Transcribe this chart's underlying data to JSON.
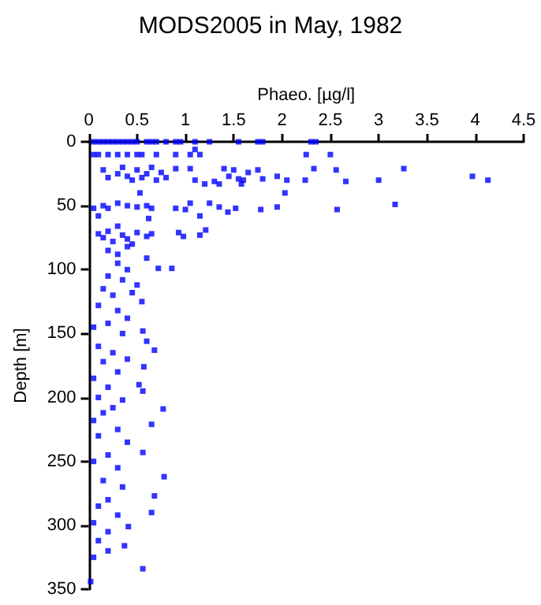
{
  "chart_data": {
    "type": "scatter",
    "title": "MODS2005 in May, 1982",
    "xlabel": "Phaeo. [µg/l]",
    "ylabel": "Depth [m]",
    "xlim": [
      0,
      4.5
    ],
    "xticks": [
      0,
      0.5,
      1,
      1.5,
      2,
      2.5,
      3,
      3.5,
      4,
      4.5
    ],
    "ylim": [
      350,
      0
    ],
    "yticks": [
      0,
      50,
      100,
      150,
      200,
      250,
      300,
      350
    ],
    "grid": false,
    "marker": "square",
    "series": [
      {
        "color": "#0000ff",
        "x": [
          0.05,
          0.1,
          0.15,
          0.2,
          0.25,
          0.3,
          0.35,
          0.4,
          0.45,
          0.5,
          0.6,
          0.65,
          0.7,
          0.8,
          0.9,
          0.95,
          1.1,
          1.25,
          1.55,
          1.75,
          1.8,
          2.3,
          2.35,
          0.05,
          0.1,
          0.2,
          0.3,
          0.4,
          0.5,
          0.55,
          0.7,
          0.9,
          1.05,
          1.15,
          2.25,
          2.5,
          1.1,
          0.15,
          0.2,
          0.3,
          0.35,
          0.4,
          0.45,
          0.5,
          0.55,
          0.6,
          0.65,
          0.7,
          0.75,
          0.8,
          0.9,
          1.05,
          1.1,
          1.2,
          1.3,
          1.35,
          1.4,
          1.5,
          1.55,
          1.6,
          1.65,
          1.75,
          1.8,
          1.95,
          2.05,
          2.24,
          2.33,
          2.56,
          2.66,
          3.0,
          3.26,
          3.97,
          4.13,
          1.58,
          1.45,
          0.53,
          2.03,
          0.05,
          0.15,
          0.2,
          0.3,
          0.4,
          0.5,
          0.6,
          0.65,
          0.9,
          1.0,
          1.05,
          1.15,
          1.25,
          1.35,
          1.44,
          1.52,
          1.78,
          1.95,
          2.57,
          3.17,
          0.1,
          0.62,
          0.1,
          0.15,
          0.2,
          0.25,
          0.3,
          0.35,
          0.4,
          0.5,
          0.6,
          0.65,
          0.93,
          0.98,
          1.15,
          1.21,
          0.45,
          0.2,
          0.3,
          0.4,
          0.6,
          0.72,
          0.86,
          0.3,
          0.4,
          0.2,
          0.35,
          0.5,
          0.15,
          0.25,
          0.45,
          0.55,
          0.1,
          0.3,
          0.4,
          0.2,
          0.56,
          0.05,
          0.35,
          0.6,
          0.68,
          0.1,
          0.25,
          0.4,
          0.15,
          0.57,
          0.3,
          0.05,
          0.52,
          0.2,
          0.56,
          0.1,
          0.35,
          0.25,
          0.77,
          0.15,
          0.65,
          0.05,
          0.3,
          0.1,
          0.4,
          0.56,
          0.2,
          0.05,
          0.3,
          0.78,
          0.15,
          0.35,
          0.68,
          0.2,
          0.1,
          0.65,
          0.3,
          0.05,
          0.41,
          0.2,
          0.1,
          0.37,
          0.2,
          0.05,
          0.56,
          0.02
        ],
        "values": [
          0,
          0,
          0,
          0,
          0,
          0,
          0,
          0,
          0,
          0,
          0,
          0,
          0,
          0,
          0,
          0,
          0,
          0,
          0,
          0,
          0,
          0,
          0,
          10,
          10,
          10,
          10,
          10,
          10,
          10,
          10,
          10,
          10,
          10,
          10,
          10,
          6,
          22,
          28,
          25,
          20,
          27,
          30,
          22,
          28,
          25,
          20,
          30,
          24,
          28,
          21,
          21,
          30,
          33,
          31,
          33,
          21,
          22,
          29,
          30,
          24,
          22,
          29,
          27,
          30,
          30,
          21,
          22,
          31,
          30,
          21,
          27,
          30,
          33,
          27,
          40,
          40,
          52,
          50,
          52,
          48,
          50,
          51,
          50,
          52,
          52,
          53,
          48,
          58,
          48,
          51,
          55,
          52,
          53,
          51,
          53,
          49,
          58,
          60,
          72,
          75,
          70,
          78,
          66,
          73,
          76,
          71,
          74,
          72,
          71,
          74,
          73,
          69,
          80,
          85,
          88,
          82,
          91,
          99,
          99,
          95,
          100,
          105,
          108,
          112,
          115,
          120,
          118,
          125,
          128,
          132,
          138,
          142,
          148,
          145,
          150,
          156,
          163,
          160,
          165,
          170,
          172,
          176,
          180,
          185,
          190,
          192,
          195,
          200,
          202,
          208,
          209,
          212,
          221,
          218,
          225,
          230,
          235,
          243,
          245,
          250,
          255,
          262,
          265,
          270,
          277,
          280,
          285,
          290,
          292,
          298,
          301,
          305,
          312,
          316,
          320,
          325,
          334,
          344
        ]
      }
    ]
  }
}
